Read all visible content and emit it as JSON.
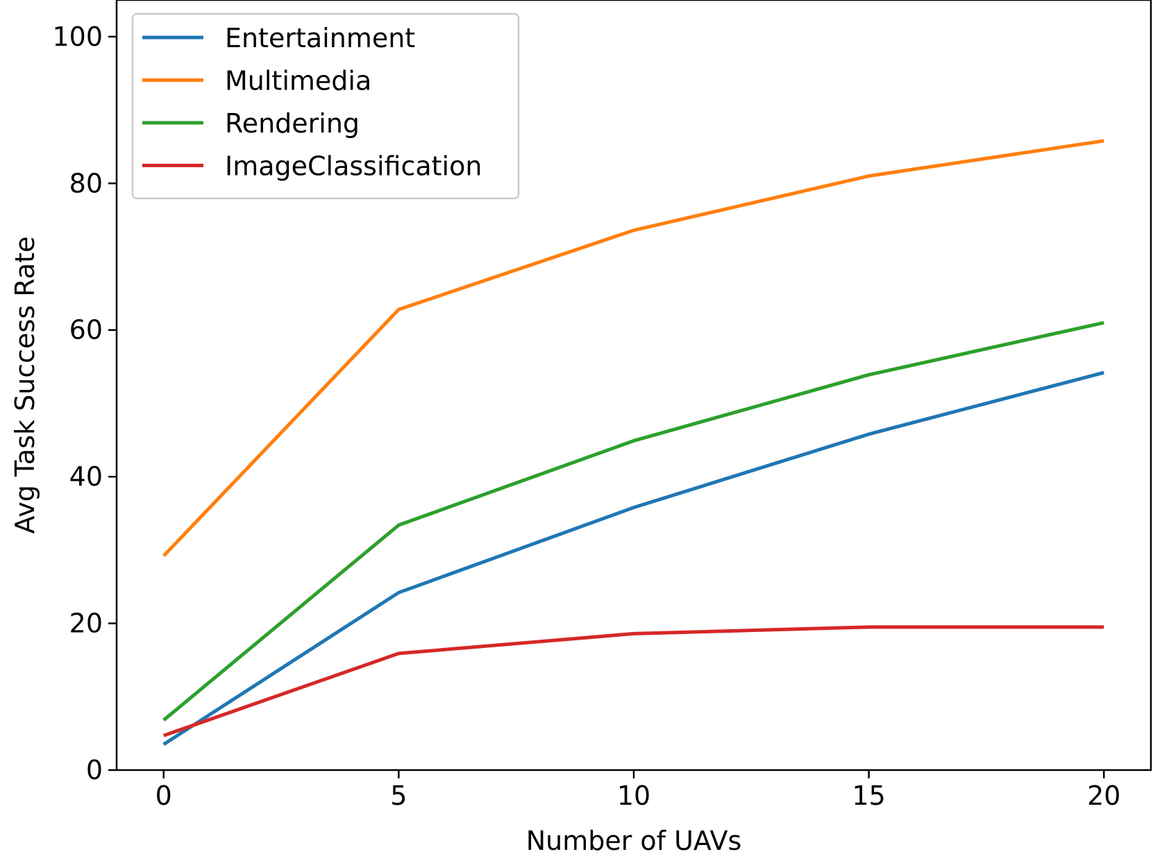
{
  "chart_data": {
    "type": "line",
    "xlabel": "Number of UAVs",
    "ylabel": "Avg Task Success Rate",
    "x": [
      0,
      5,
      10,
      15,
      20
    ],
    "xticks": [
      0,
      5,
      10,
      15,
      20
    ],
    "yticks": [
      0,
      20,
      40,
      60,
      80,
      100
    ],
    "xlim": [
      -1,
      21
    ],
    "ylim": [
      0,
      105
    ],
    "grid": false,
    "legend_position": "upper left",
    "series": [
      {
        "name": "Entertainment",
        "color": "#1f77b4",
        "values": [
          3.5,
          24.2,
          35.8,
          45.8,
          54.2
        ]
      },
      {
        "name": "Multimedia",
        "color": "#ff7f0e",
        "values": [
          29.2,
          62.8,
          73.6,
          81.0,
          85.8
        ]
      },
      {
        "name": "Rendering",
        "color": "#2ca02c",
        "values": [
          6.8,
          33.4,
          44.9,
          53.9,
          61.0
        ]
      },
      {
        "name": "ImageClassification",
        "color": "#d62728",
        "values": [
          4.7,
          15.9,
          18.6,
          19.5,
          19.5
        ]
      }
    ]
  }
}
